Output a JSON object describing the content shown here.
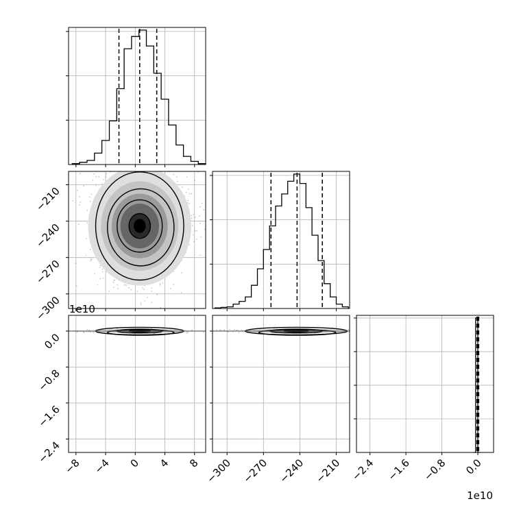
{
  "chart_data": {
    "type": "corner",
    "grid": true,
    "colors": {
      "line": "#000000",
      "grid": "#b0b0b0",
      "hist2d_dark": "#000000",
      "scatter": "#7f7f7f"
    },
    "parameters": [
      {
        "range": [
          -9,
          9.5
        ],
        "quantiles": [
          -2.2,
          0.6,
          2.9
        ]
      },
      {
        "range": [
          -312,
          -199
        ],
        "quantiles": [
          -263.8,
          -242.3,
          -221.5
        ]
      },
      {
        "range": [
          -27000000000.0,
          3500000000.0
        ],
        "quantiles": [
          -200000000.0,
          0.0,
          200000000.0
        ]
      }
    ],
    "ticks": {
      "p1_x": [
        -8,
        -4,
        0,
        4,
        8
      ],
      "p1_x_labels": [
        "−8",
        "−4",
        "0",
        "4",
        "8"
      ],
      "p2_x": [
        -300,
        -270,
        -240,
        -210
      ],
      "p2_x_labels": [
        "−300",
        "−270",
        "−240",
        "−210"
      ],
      "p2_y_labels": [
        "−210",
        "−240",
        "−270",
        "−300"
      ],
      "p3_x": [
        -2.4,
        -1.6,
        -0.8,
        0.0
      ],
      "p3_x_labels": [
        "−2.4",
        "−1.6",
        "−0.8",
        "0.0"
      ],
      "p3_y_labels": [
        "0.0",
        "−0.8",
        "−1.6",
        "−2.4"
      ]
    },
    "offset_text": "1e10",
    "histograms": [
      {
        "param": 1,
        "bin_edges": [
          -8.5,
          -7.5,
          -6.5,
          -5.5,
          -4.5,
          -3.5,
          -2.5,
          -1.5,
          -0.5,
          0.5,
          1.5,
          2.5,
          3.5,
          4.5,
          5.5,
          6.5,
          7.5,
          8.5,
          9.5
        ],
        "counts": [
          2,
          5,
          9,
          25,
          53,
          96,
          167,
          255,
          282,
          296,
          261,
          201,
          144,
          87,
          43,
          18,
          7,
          2
        ]
      },
      {
        "param": 2,
        "bin_edges": [
          -310,
          -305,
          -300,
          -295,
          -290,
          -285,
          -280,
          -275,
          -270,
          -265,
          -260,
          -255,
          -250,
          -245,
          -240,
          -235,
          -230,
          -225,
          -220,
          -215,
          -210,
          -205,
          -200
        ],
        "counts": [
          1,
          2,
          3,
          8,
          13,
          21,
          42,
          72,
          107,
          150,
          186,
          208,
          231,
          244,
          227,
          183,
          133,
          87,
          45,
          21,
          8,
          3
        ]
      },
      {
        "param": 3,
        "bin_edges": [
          -1000000000.0,
          -500000000.0,
          0.0,
          500000000.0
        ],
        "counts": [
          0,
          1,
          0
        ]
      }
    ],
    "contours": {
      "p2_vs_p1": {
        "center": [
          0.6,
          -244
        ],
        "sigma": [
          2.9,
          20.5
        ]
      },
      "p3_vs_p1": {
        "center": [
          0.6,
          0.0
        ],
        "sigma": [
          2.9,
          60000000.0
        ]
      },
      "p3_vs_p2": {
        "center": [
          -243,
          0.0
        ],
        "sigma": [
          20.5,
          60000000.0
        ]
      }
    }
  }
}
